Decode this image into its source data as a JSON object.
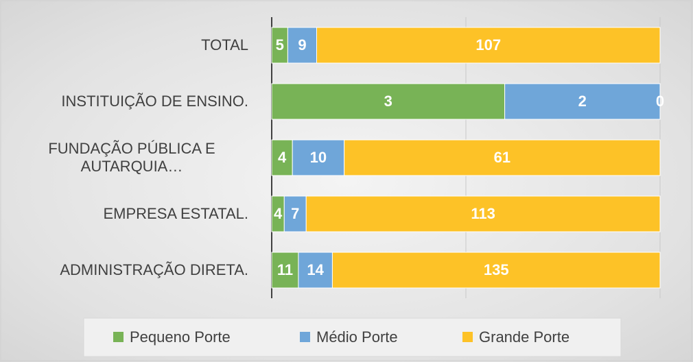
{
  "chart_data": {
    "type": "bar",
    "orientation": "horizontal",
    "stacked": "percent",
    "categories": [
      "TOTAL",
      "INSTITUIÇÃO DE ENSINO.",
      "FUNDAÇÃO PÚBLICA E AUTARQUIA…",
      "EMPRESA ESTATAL.",
      "ADMINISTRAÇÃO DIRETA."
    ],
    "series": [
      {
        "name": "Pequeno Porte",
        "color": "#78b356",
        "values": [
          5,
          3,
          4,
          4,
          11
        ]
      },
      {
        "name": "Médio Porte",
        "color": "#6fa6d9",
        "values": [
          9,
          2,
          10,
          7,
          14
        ]
      },
      {
        "name": "Grande Porte",
        "color": "#fdc227",
        "values": [
          107,
          0,
          61,
          113,
          135
        ]
      }
    ],
    "xlim": [
      0,
      100
    ],
    "xticks": [
      0,
      50,
      100
    ],
    "grid": true,
    "legend": "bottom"
  }
}
